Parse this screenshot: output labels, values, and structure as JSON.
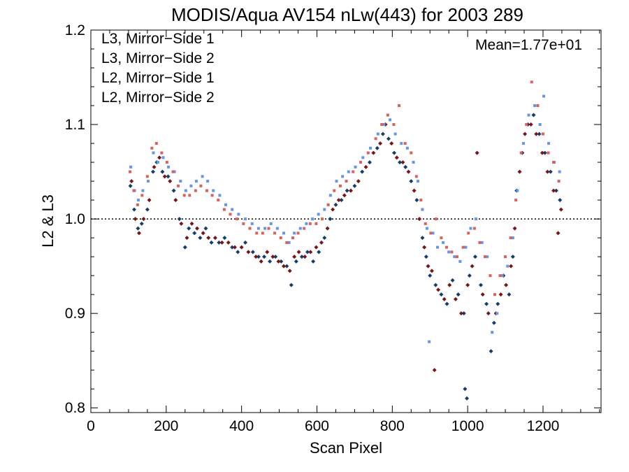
{
  "chart_data": {
    "type": "scatter",
    "title": "MODIS/Aqua AV154 nLw(443) for 2003 289",
    "xlabel": "Scan Pixel",
    "ylabel": "L2 & L3",
    "xlim": [
      0,
      1354
    ],
    "ylim": [
      0.795,
      1.2
    ],
    "xticks": [
      "0",
      "200",
      "400",
      "600",
      "800",
      "1000",
      "1200"
    ],
    "yticks": [
      "0.8",
      "0.9",
      "1.0",
      "1.1",
      "1.2"
    ],
    "reference_line": 1.0,
    "annotation": "Mean=1.77e+01",
    "annotation_color": "#d9605c",
    "legend_position": "top-left",
    "series": [
      {
        "name": "L3, Mirror−Side 1",
        "color": "#123d6e",
        "marker": "diamond",
        "points": [
          [
            105,
            1.035
          ],
          [
            115,
            1.01
          ],
          [
            125,
            0.99
          ],
          [
            135,
            0.995
          ],
          [
            150,
            1.01
          ],
          [
            165,
            1.05
          ],
          [
            175,
            1.06
          ],
          [
            190,
            1.05
          ],
          [
            205,
            1.045
          ],
          [
            220,
            1.03
          ],
          [
            235,
            1.0
          ],
          [
            250,
            0.97
          ],
          [
            260,
            0.99
          ],
          [
            275,
            0.985
          ],
          [
            290,
            0.98
          ],
          [
            305,
            0.99
          ],
          [
            320,
            0.975
          ],
          [
            340,
            0.975
          ],
          [
            355,
            0.98
          ],
          [
            375,
            0.97
          ],
          [
            390,
            0.965
          ],
          [
            410,
            0.975
          ],
          [
            430,
            0.965
          ],
          [
            445,
            0.96
          ],
          [
            460,
            0.96
          ],
          [
            475,
            0.955
          ],
          [
            490,
            0.96
          ],
          [
            505,
            0.955
          ],
          [
            520,
            0.95
          ],
          [
            532,
            0.93
          ],
          [
            545,
            0.955
          ],
          [
            560,
            0.96
          ],
          [
            575,
            0.965
          ],
          [
            590,
            0.955
          ],
          [
            605,
            0.965
          ],
          [
            620,
            0.98
          ],
          [
            635,
            1.0
          ],
          [
            650,
            1.015
          ],
          [
            665,
            1.02
          ],
          [
            680,
            1.03
          ],
          [
            700,
            1.035
          ],
          [
            720,
            1.05
          ],
          [
            740,
            1.06
          ],
          [
            760,
            1.075
          ],
          [
            775,
            1.09
          ],
          [
            790,
            1.085
          ],
          [
            805,
            1.07
          ],
          [
            820,
            1.06
          ],
          [
            835,
            1.055
          ],
          [
            850,
            1.04
          ],
          [
            865,
            1.02
          ],
          [
            880,
            0.98
          ],
          [
            890,
            0.96
          ],
          [
            900,
            0.94
          ],
          [
            915,
            0.93
          ],
          [
            930,
            0.92
          ],
          [
            945,
            0.91
          ],
          [
            960,
            0.935
          ],
          [
            975,
            0.92
          ],
          [
            990,
            0.9
          ],
          [
            993,
            0.82
          ],
          [
            998,
            0.81
          ],
          [
            1005,
            0.94
          ],
          [
            1020,
            0.96
          ],
          [
            1035,
            0.93
          ],
          [
            1050,
            0.91
          ],
          [
            1062,
            0.86
          ],
          [
            1070,
            0.89
          ],
          [
            1080,
            0.91
          ],
          [
            1095,
            0.94
          ],
          [
            1110,
            0.92
          ],
          [
            1120,
            0.96
          ],
          [
            1130,
            1.03
          ],
          [
            1145,
            1.07
          ],
          [
            1160,
            1.1
          ],
          [
            1175,
            1.11
          ],
          [
            1190,
            1.09
          ],
          [
            1205,
            1.07
          ],
          [
            1220,
            1.05
          ],
          [
            1235,
            1.03
          ],
          [
            1245,
            1.02
          ]
        ]
      },
      {
        "name": "L3, Mirror−Side 2",
        "color": "#7a1418",
        "marker": "diamond",
        "points": [
          [
            108,
            1.04
          ],
          [
            118,
            1.0
          ],
          [
            128,
            0.985
          ],
          [
            140,
            1.0
          ],
          [
            155,
            1.02
          ],
          [
            168,
            1.055
          ],
          [
            182,
            1.065
          ],
          [
            196,
            1.045
          ],
          [
            210,
            1.04
          ],
          [
            225,
            1.02
          ],
          [
            240,
            0.995
          ],
          [
            255,
            0.98
          ],
          [
            268,
            0.995
          ],
          [
            282,
            0.99
          ],
          [
            298,
            0.985
          ],
          [
            312,
            0.98
          ],
          [
            330,
            0.98
          ],
          [
            348,
            0.975
          ],
          [
            365,
            0.975
          ],
          [
            382,
            0.97
          ],
          [
            400,
            0.97
          ],
          [
            418,
            0.965
          ],
          [
            438,
            0.96
          ],
          [
            452,
            0.955
          ],
          [
            468,
            0.965
          ],
          [
            483,
            0.96
          ],
          [
            498,
            0.955
          ],
          [
            512,
            0.95
          ],
          [
            528,
            0.945
          ],
          [
            540,
            0.96
          ],
          [
            552,
            0.965
          ],
          [
            568,
            0.96
          ],
          [
            583,
            0.965
          ],
          [
            598,
            0.97
          ],
          [
            612,
            0.975
          ],
          [
            628,
            0.99
          ],
          [
            642,
            1.01
          ],
          [
            658,
            1.02
          ],
          [
            673,
            1.025
          ],
          [
            690,
            1.03
          ],
          [
            710,
            1.04
          ],
          [
            730,
            1.055
          ],
          [
            750,
            1.07
          ],
          [
            768,
            1.08
          ],
          [
            782,
            1.1
          ],
          [
            798,
            1.08
          ],
          [
            812,
            1.065
          ],
          [
            828,
            1.06
          ],
          [
            843,
            1.05
          ],
          [
            858,
            1.03
          ],
          [
            872,
            1.0
          ],
          [
            885,
            0.97
          ],
          [
            895,
            0.95
          ],
          [
            905,
            0.945
          ],
          [
            912,
            0.84
          ],
          [
            922,
            0.925
          ],
          [
            938,
            0.915
          ],
          [
            952,
            0.93
          ],
          [
            968,
            0.915
          ],
          [
            983,
            0.9
          ],
          [
            1000,
            0.93
          ],
          [
            1012,
            0.95
          ],
          [
            1025,
            1.07
          ],
          [
            1040,
            0.92
          ],
          [
            1055,
            0.9
          ],
          [
            1075,
            0.9
          ],
          [
            1088,
            0.92
          ],
          [
            1102,
            0.93
          ],
          [
            1115,
            0.95
          ],
          [
            1125,
            0.99
          ],
          [
            1138,
            1.05
          ],
          [
            1152,
            1.09
          ],
          [
            1168,
            1.1
          ],
          [
            1182,
            1.09
          ],
          [
            1198,
            1.07
          ],
          [
            1212,
            1.05
          ],
          [
            1228,
            1.03
          ],
          [
            1240,
            0.985
          ],
          [
            1248,
            1.01
          ]
        ]
      },
      {
        "name": "L2, Mirror−Side 1",
        "color": "#6495e6",
        "marker": "square",
        "points": [
          [
            106,
            1.055
          ],
          [
            116,
            1.03
          ],
          [
            126,
            1.02
          ],
          [
            138,
            1.03
          ],
          [
            152,
            1.04
          ],
          [
            166,
            1.07
          ],
          [
            178,
            1.06
          ],
          [
            192,
            1.065
          ],
          [
            206,
            1.055
          ],
          [
            222,
            1.05
          ],
          [
            238,
            1.04
          ],
          [
            252,
            1.03
          ],
          [
            266,
            1.035
          ],
          [
            280,
            1.04
          ],
          [
            296,
            1.045
          ],
          [
            310,
            1.04
          ],
          [
            325,
            1.03
          ],
          [
            342,
            1.025
          ],
          [
            358,
            1.015
          ],
          [
            375,
            1.01
          ],
          [
            392,
            1.005
          ],
          [
            410,
            1.0
          ],
          [
            428,
            0.995
          ],
          [
            445,
            0.99
          ],
          [
            462,
            0.99
          ],
          [
            478,
            0.995
          ],
          [
            495,
            0.99
          ],
          [
            512,
            0.985
          ],
          [
            526,
            0.975
          ],
          [
            540,
            0.985
          ],
          [
            556,
            0.99
          ],
          [
            572,
            0.995
          ],
          [
            588,
            1.0
          ],
          [
            604,
            1.005
          ],
          [
            620,
            1.01
          ],
          [
            636,
            1.025
          ],
          [
            652,
            1.04
          ],
          [
            668,
            1.045
          ],
          [
            684,
            1.05
          ],
          [
            702,
            1.055
          ],
          [
            722,
            1.065
          ],
          [
            742,
            1.075
          ],
          [
            762,
            1.09
          ],
          [
            778,
            1.1
          ],
          [
            794,
            1.105
          ],
          [
            808,
            1.09
          ],
          [
            824,
            1.08
          ],
          [
            840,
            1.075
          ],
          [
            856,
            1.06
          ],
          [
            868,
            1.04
          ],
          [
            880,
            1.01
          ],
          [
            892,
            0.99
          ],
          [
            898,
            0.87
          ],
          [
            908,
            0.985
          ],
          [
            920,
            0.97
          ],
          [
            935,
            0.975
          ],
          [
            950,
            0.965
          ],
          [
            965,
            0.96
          ],
          [
            980,
            0.955
          ],
          [
            995,
            0.97
          ],
          [
            1008,
            0.99
          ],
          [
            1022,
            1.0
          ],
          [
            1038,
            0.975
          ],
          [
            1052,
            0.96
          ],
          [
            1065,
            0.88
          ],
          [
            1078,
            0.9
          ],
          [
            1092,
            0.94
          ],
          [
            1106,
            0.95
          ],
          [
            1120,
            0.98
          ],
          [
            1132,
            1.03
          ],
          [
            1148,
            1.08
          ],
          [
            1162,
            1.11
          ],
          [
            1178,
            1.12
          ],
          [
            1192,
            1.1
          ],
          [
            1202,
            1.13
          ],
          [
            1215,
            1.08
          ],
          [
            1230,
            1.06
          ],
          [
            1244,
            1.05
          ]
        ]
      },
      {
        "name": "L2, Mirror−Side 2",
        "color": "#d9605c",
        "marker": "square",
        "points": [
          [
            104,
            1.05
          ],
          [
            114,
            1.03
          ],
          [
            124,
            1.015
          ],
          [
            136,
            1.025
          ],
          [
            150,
            1.045
          ],
          [
            162,
            1.075
          ],
          [
            174,
            1.08
          ],
          [
            188,
            1.07
          ],
          [
            202,
            1.06
          ],
          [
            218,
            1.05
          ],
          [
            232,
            1.035
          ],
          [
            248,
            1.025
          ],
          [
            262,
            1.025
          ],
          [
            278,
            1.03
          ],
          [
            292,
            1.035
          ],
          [
            308,
            1.03
          ],
          [
            322,
            1.025
          ],
          [
            338,
            1.02
          ],
          [
            354,
            1.01
          ],
          [
            370,
            1.005
          ],
          [
            388,
            1.0
          ],
          [
            405,
            0.995
          ],
          [
            422,
            0.99
          ],
          [
            440,
            0.985
          ],
          [
            456,
            0.985
          ],
          [
            472,
            0.99
          ],
          [
            488,
            0.985
          ],
          [
            504,
            0.98
          ],
          [
            520,
            0.975
          ],
          [
            536,
            0.98
          ],
          [
            550,
            0.985
          ],
          [
            566,
            0.99
          ],
          [
            582,
            0.995
          ],
          [
            598,
            0.995
          ],
          [
            614,
            1.0
          ],
          [
            630,
            1.015
          ],
          [
            646,
            1.03
          ],
          [
            662,
            1.035
          ],
          [
            678,
            1.04
          ],
          [
            696,
            1.05
          ],
          [
            716,
            1.06
          ],
          [
            736,
            1.07
          ],
          [
            756,
            1.085
          ],
          [
            772,
            1.1
          ],
          [
            788,
            1.11
          ],
          [
            804,
            1.1
          ],
          [
            818,
            1.12
          ],
          [
            834,
            1.08
          ],
          [
            850,
            1.07
          ],
          [
            864,
            1.045
          ],
          [
            876,
            1.02
          ],
          [
            888,
            0.995
          ],
          [
            902,
            0.985
          ],
          [
            916,
            1.0
          ],
          [
            930,
            0.98
          ],
          [
            944,
            0.97
          ],
          [
            958,
            0.965
          ],
          [
            972,
            0.96
          ],
          [
            988,
            0.97
          ],
          [
            1002,
            0.985
          ],
          [
            1018,
            0.99
          ],
          [
            1032,
            0.975
          ],
          [
            1046,
            0.96
          ],
          [
            1060,
            0.94
          ],
          [
            1072,
            0.92
          ],
          [
            1086,
            0.94
          ],
          [
            1100,
            0.96
          ],
          [
            1114,
            0.98
          ],
          [
            1128,
            1.02
          ],
          [
            1142,
            1.07
          ],
          [
            1156,
            1.1
          ],
          [
            1170,
            1.145
          ],
          [
            1186,
            1.12
          ],
          [
            1200,
            1.09
          ],
          [
            1214,
            1.07
          ],
          [
            1228,
            1.06
          ],
          [
            1242,
            1.04
          ]
        ]
      }
    ]
  }
}
